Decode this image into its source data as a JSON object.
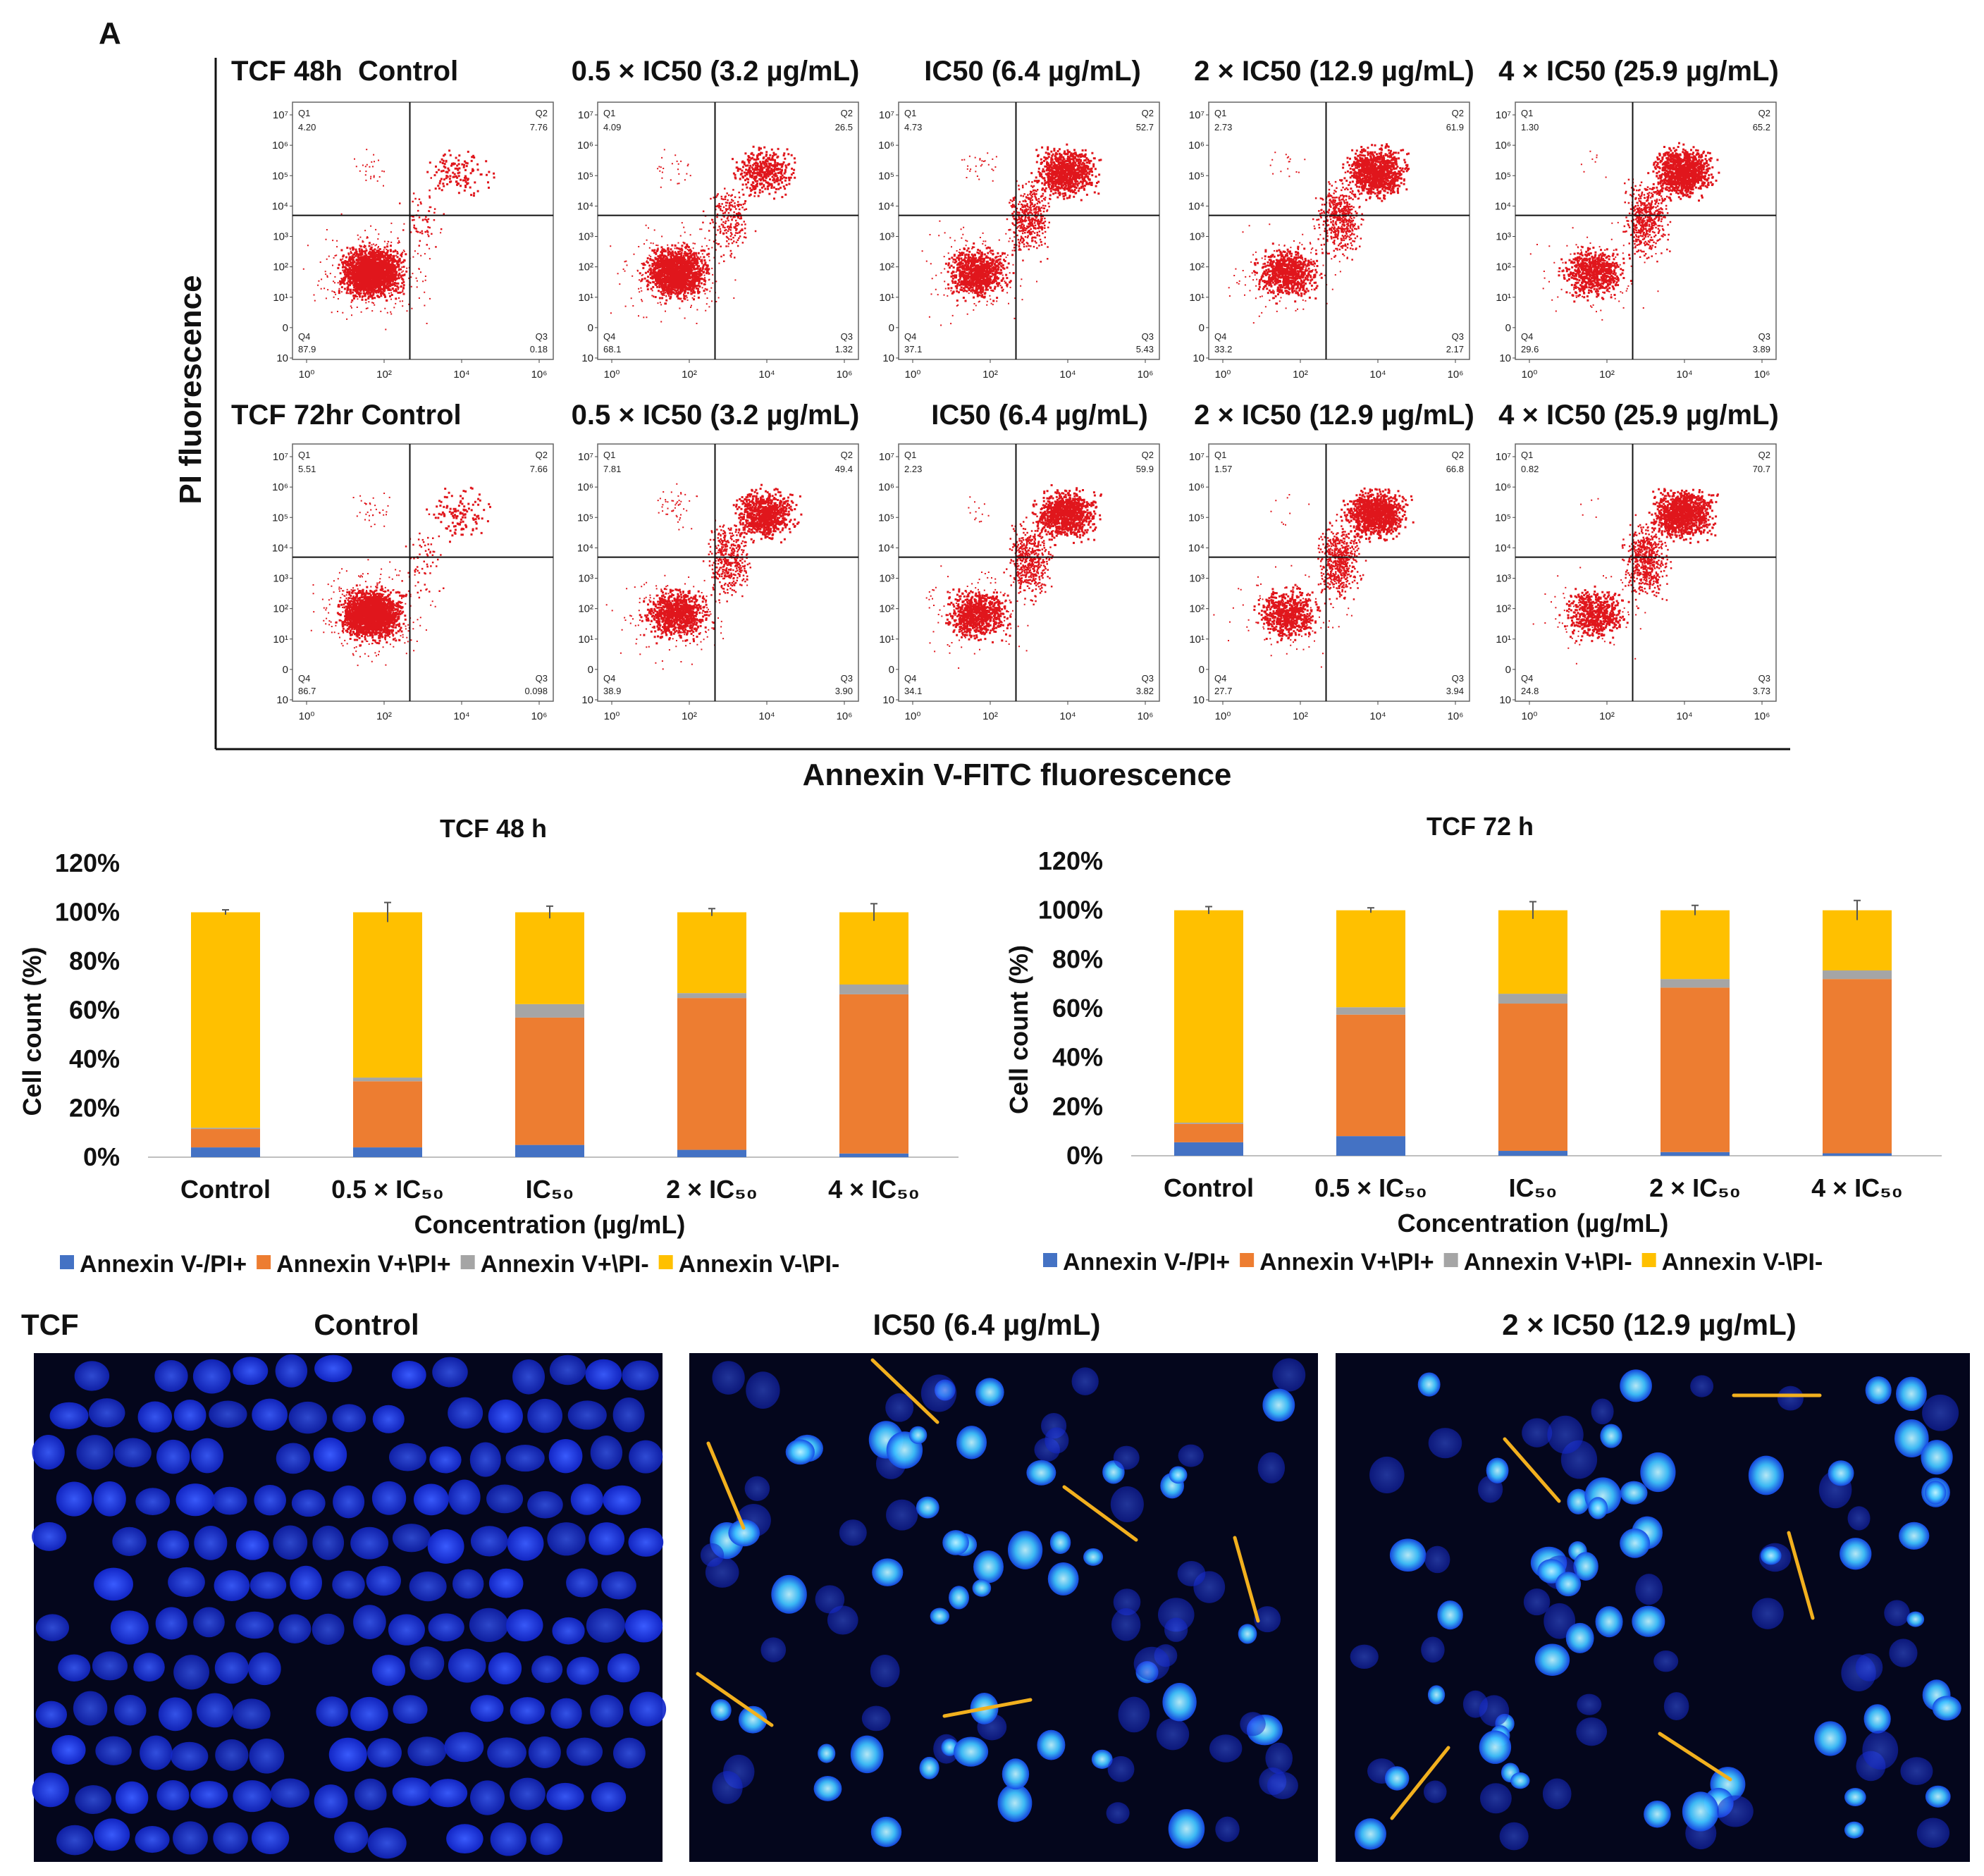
{
  "panel_label": "A",
  "colors": {
    "neg_pos": "#4472C4",
    "pos_pos": "#ED7D31",
    "pos_neg": "#A5A5A5",
    "neg_neg": "#FFC000",
    "dots": "#e0161c",
    "micro_bg": "#04061c",
    "nucleus": "#1e3cff",
    "nucleus_bright": "#41c8ff",
    "arrow": "#f2b01e"
  },
  "flow": {
    "y_label": "PI fluorescence",
    "x_label": "Annexin V-FITC fluorescence",
    "row_48_label": "TCF 48h  Control",
    "row_72_label": "TCF 72hr Control",
    "col_titles_48": [
      "0.5 × IC50 (3.2 µg/mL)",
      "IC50 (6.4 µg/mL)",
      "2 × IC50 (12.9 µg/mL)",
      "4 × IC50 (25.9 µg/mL)"
    ],
    "col_titles_72": [
      "0.5 × IC50 (3.2 µg/mL)",
      "IC50 (6.4 µg/mL)",
      "2 × IC50 (12.9 µg/mL)",
      "4 × IC50 (25.9 µg/mL)"
    ],
    "quadrant_names": [
      "Q1",
      "Q2",
      "Q3",
      "Q4"
    ],
    "y_ticks": [
      "10⁷",
      "10⁶",
      "10⁵",
      "10⁴",
      "10³",
      "10²",
      "10¹",
      "0",
      "10"
    ],
    "x_ticks": [
      "10⁰",
      "10²",
      "10⁴",
      "10⁶"
    ],
    "plots_48": [
      {
        "q1": "4.20",
        "q2": "7.76",
        "q3": "0.18",
        "q4": "87.9"
      },
      {
        "q1": "4.09",
        "q2": "26.5",
        "q3": "1.32",
        "q4": "68.1"
      },
      {
        "q1": "4.73",
        "q2": "52.7",
        "q3": "5.43",
        "q4": "37.1"
      },
      {
        "q1": "2.73",
        "q2": "61.9",
        "q3": "2.17",
        "q4": "33.2"
      },
      {
        "q1": "1.30",
        "q2": "65.2",
        "q3": "3.89",
        "q4": "29.6"
      }
    ],
    "plots_72": [
      {
        "q1": "5.51",
        "q2": "7.66",
        "q3": "0.098",
        "q4": "86.7"
      },
      {
        "q1": "7.81",
        "q2": "49.4",
        "q3": "3.90",
        "q4": "38.9"
      },
      {
        "q1": "2.23",
        "q2": "59.9",
        "q3": "3.82",
        "q4": "34.1"
      },
      {
        "q1": "1.57",
        "q2": "66.8",
        "q3": "3.94",
        "q4": "27.7"
      },
      {
        "q1": "0.82",
        "q2": "70.7",
        "q3": "3.73",
        "q4": "24.8"
      }
    ]
  },
  "chart_data": [
    {
      "type": "bar",
      "stacked": true,
      "title": "TCF 48 h",
      "xlabel": "Concentration (µg/mL)",
      "ylabel": "Cell count (%)",
      "ylim": [
        0,
        120
      ],
      "y_ticks": [
        "0%",
        "20%",
        "40%",
        "60%",
        "80%",
        "100%",
        "120%"
      ],
      "categories": [
        "Control",
        "0.5 × IC₅₀",
        "IC₅₀",
        "2 × IC₅₀",
        "4 × IC₅₀"
      ],
      "series": [
        {
          "name": "Annexin V-/PI+",
          "values": [
            4,
            4,
            5,
            3,
            1.5
          ]
        },
        {
          "name": "Annexin V+\\PI+",
          "values": [
            7.5,
            27,
            52,
            62,
            65
          ]
        },
        {
          "name": "Annexin V+\\PI-",
          "values": [
            0.5,
            1.5,
            5.5,
            2,
            4
          ]
        },
        {
          "name": "Annexin V-\\PI-",
          "values": [
            88,
            67.5,
            37.5,
            33,
            29.5
          ]
        }
      ],
      "error_tops": [
        1,
        4,
        2.5,
        1.5,
        3.5
      ]
    },
    {
      "type": "bar",
      "stacked": true,
      "title": "TCF 72 h",
      "xlabel": "Concentration (µg/mL)",
      "ylabel": "Cell count (%)",
      "ylim": [
        0,
        120
      ],
      "y_ticks": [
        "0%",
        "20%",
        "40%",
        "60%",
        "80%",
        "100%",
        "120%"
      ],
      "categories": [
        "Control",
        "0.5 × IC₅₀",
        "IC₅₀",
        "2 × IC₅₀",
        "4 × IC₅₀"
      ],
      "series": [
        {
          "name": "Annexin V-/PI+",
          "values": [
            5.5,
            8,
            2,
            1.5,
            1
          ]
        },
        {
          "name": "Annexin V+\\PI+",
          "values": [
            7.5,
            49.5,
            60,
            67,
            71
          ]
        },
        {
          "name": "Annexin V+\\PI-",
          "values": [
            0.5,
            3,
            4,
            3.5,
            3.5
          ]
        },
        {
          "name": "Annexin V-\\PI-",
          "values": [
            86.5,
            39.5,
            34,
            28,
            24.5
          ]
        }
      ],
      "error_tops": [
        1.5,
        1,
        3.5,
        2,
        4
      ]
    }
  ],
  "micro": {
    "label": "TCF",
    "titles": [
      "Control",
      "IC50 (6.4 µg/mL)",
      "2 × IC50 (12.9 µg/mL)"
    ]
  }
}
